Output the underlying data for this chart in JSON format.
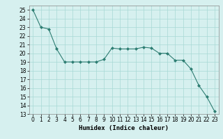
{
  "x": [
    0,
    1,
    2,
    3,
    4,
    5,
    6,
    7,
    8,
    9,
    10,
    11,
    12,
    13,
    14,
    15,
    16,
    17,
    18,
    19,
    20,
    21,
    22,
    23
  ],
  "y": [
    25,
    23,
    22.8,
    20.5,
    19,
    19,
    19,
    19,
    19,
    19.3,
    20.6,
    20.5,
    20.5,
    20.5,
    20.7,
    20.6,
    20,
    20,
    19.2,
    19.2,
    18.2,
    16.3,
    15,
    13.3
  ],
  "line_color": "#2d7d72",
  "marker": "D",
  "marker_size": 2.0,
  "bg_color": "#d6f0ef",
  "grid_color": "#a8d8d5",
  "xlabel": "Humidex (Indice chaleur)",
  "xlim": [
    -0.5,
    23.5
  ],
  "ylim": [
    13,
    25.5
  ],
  "yticks": [
    13,
    14,
    15,
    16,
    17,
    18,
    19,
    20,
    21,
    22,
    23,
    24,
    25
  ],
  "xticks": [
    0,
    1,
    2,
    3,
    4,
    5,
    6,
    7,
    8,
    9,
    10,
    11,
    12,
    13,
    14,
    15,
    16,
    17,
    18,
    19,
    20,
    21,
    22,
    23
  ],
  "label_fontsize": 6.5,
  "tick_fontsize": 5.5
}
